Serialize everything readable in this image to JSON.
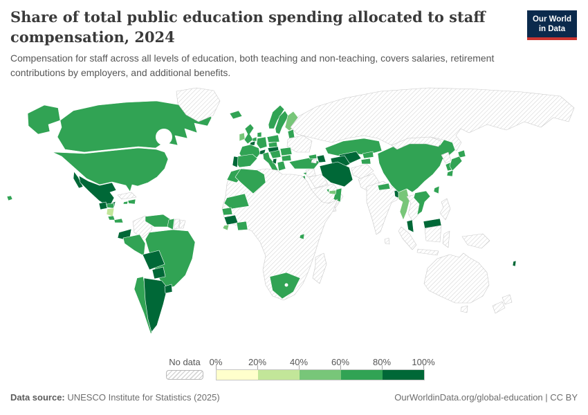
{
  "header": {
    "title": "Share of total public education spending allocated to staff compensation, 2024",
    "subtitle": "Compensation for staff across all levels of education, both teaching and non-teaching, covers salaries, retirement contributions by employers, and additional benefits.",
    "logo": {
      "line1": "Our World",
      "line2": "in Data",
      "bg_color": "#0b2a4c",
      "accent_color": "#cb3530"
    }
  },
  "legend": {
    "no_data_label": "No data",
    "ticks": [
      "0%",
      "20%",
      "40%",
      "60%",
      "80%",
      "100%"
    ]
  },
  "footer": {
    "datasource_label": "Data source:",
    "datasource_value": " UNESCO Institute for Statistics (2025)",
    "credit": "OurWorldinData.org/global-education | CC BY"
  },
  "chart_data": {
    "type": "choropleth",
    "title": "Share of total public education spending allocated to staff compensation",
    "year": 2024,
    "unit": "share of total public education spending (%)",
    "legend_position": "bottom",
    "no_data": {
      "label": "No data",
      "pattern": "diagonal-hatch",
      "hatch_color": "#d2d2d2",
      "border_color": "#c9c9c9"
    },
    "land_border_color": "#ffffff",
    "ocean_color": "#ffffff",
    "legend_bins": [
      {
        "label": "0-20%",
        "color": "#ffffcc"
      },
      {
        "label": "20-40%",
        "color": "#c2e699"
      },
      {
        "label": "40-60%",
        "color": "#78c679"
      },
      {
        "label": "60-80%",
        "color": "#31a354"
      },
      {
        "label": "80-100%",
        "color": "#006837"
      }
    ],
    "regions": [
      {
        "id": "canada",
        "name": "Canada",
        "value": "60-80%"
      },
      {
        "id": "usa",
        "name": "United States",
        "value": "60-80%"
      },
      {
        "id": "greenland",
        "name": "Greenland",
        "value": "no-data"
      },
      {
        "id": "mexico",
        "name": "Mexico",
        "value": "80-100%"
      },
      {
        "id": "guatemala",
        "name": "Guatemala",
        "value": "80-100%"
      },
      {
        "id": "honduras",
        "name": "Honduras",
        "value": "60-80%"
      },
      {
        "id": "nicaragua",
        "name": "Nicaragua",
        "value": "20-40%"
      },
      {
        "id": "costa_rica",
        "name": "Costa Rica",
        "value": "60-80%"
      },
      {
        "id": "panama",
        "name": "Panama",
        "value": "60-80%"
      },
      {
        "id": "cuba",
        "name": "Cuba",
        "value": "no-data"
      },
      {
        "id": "jamaica",
        "name": "Jamaica",
        "value": "60-80%"
      },
      {
        "id": "dominican",
        "name": "Dominican Republic",
        "value": "60-80%"
      },
      {
        "id": "colombia",
        "name": "Colombia",
        "value": "no-data"
      },
      {
        "id": "venezuela",
        "name": "Venezuela",
        "value": "60-80%"
      },
      {
        "id": "guyana",
        "name": "Guyana",
        "value": "60-80%"
      },
      {
        "id": "suriname",
        "name": "Suriname",
        "value": "no-data"
      },
      {
        "id": "guiana_fr",
        "name": "French Guiana",
        "value": "no-data"
      },
      {
        "id": "ecuador",
        "name": "Ecuador",
        "value": "80-100%"
      },
      {
        "id": "peru",
        "name": "Peru",
        "value": "60-80%"
      },
      {
        "id": "brazil",
        "name": "Brazil",
        "value": "60-80%"
      },
      {
        "id": "bolivia",
        "name": "Bolivia",
        "value": "80-100%"
      },
      {
        "id": "paraguay",
        "name": "Paraguay",
        "value": "80-100%"
      },
      {
        "id": "chile",
        "name": "Chile",
        "value": "60-80%"
      },
      {
        "id": "argentina",
        "name": "Argentina",
        "value": "80-100%"
      },
      {
        "id": "uruguay",
        "name": "Uruguay",
        "value": "80-100%"
      },
      {
        "id": "iceland",
        "name": "Iceland",
        "value": "60-80%"
      },
      {
        "id": "norway",
        "name": "Norway",
        "value": "60-80%"
      },
      {
        "id": "sweden",
        "name": "Sweden",
        "value": "60-80%"
      },
      {
        "id": "finland",
        "name": "Finland",
        "value": "40-60%"
      },
      {
        "id": "uk",
        "name": "United Kingdom",
        "value": "60-80%"
      },
      {
        "id": "ireland",
        "name": "Ireland",
        "value": "40-60%"
      },
      {
        "id": "denmark",
        "name": "Denmark",
        "value": "60-80%"
      },
      {
        "id": "netherlands",
        "name": "Netherlands",
        "value": "60-80%"
      },
      {
        "id": "belgium",
        "name": "Belgium",
        "value": "80-100%"
      },
      {
        "id": "germany",
        "name": "Germany",
        "value": "60-80%"
      },
      {
        "id": "france",
        "name": "France",
        "value": "60-80%"
      },
      {
        "id": "switzerland",
        "name": "Switzerland",
        "value": "80-100%"
      },
      {
        "id": "spain",
        "name": "Spain",
        "value": "60-80%"
      },
      {
        "id": "portugal",
        "name": "Portugal",
        "value": "80-100%"
      },
      {
        "id": "italy",
        "name": "Italy",
        "value": "60-80%"
      },
      {
        "id": "czech",
        "name": "Czechia",
        "value": "60-80%"
      },
      {
        "id": "austria",
        "name": "Austria",
        "value": "80-100%"
      },
      {
        "id": "poland",
        "name": "Poland",
        "value": "60-80%"
      },
      {
        "id": "baltics",
        "name": "Baltic states",
        "value": "60-80%"
      },
      {
        "id": "belarus_ukraine",
        "name": "Belarus and Ukraine",
        "value": "no-data"
      },
      {
        "id": "hungary_balkans",
        "name": "Hungary and Western Balkans",
        "value": "60-80%"
      },
      {
        "id": "romania",
        "name": "Romania",
        "value": "60-80%"
      },
      {
        "id": "bulgaria",
        "name": "Bulgaria",
        "value": "60-80%"
      },
      {
        "id": "albania",
        "name": "Albania",
        "value": "80-100%"
      },
      {
        "id": "greece",
        "name": "Greece",
        "value": "60-80%"
      },
      {
        "id": "cyprus",
        "name": "Cyprus",
        "value": "60-80%"
      },
      {
        "id": "russia",
        "name": "Russia",
        "value": "no-data"
      },
      {
        "id": "turkey",
        "name": "Turkey",
        "value": "60-80%"
      },
      {
        "id": "georgia",
        "name": "Georgia",
        "value": "60-80%"
      },
      {
        "id": "armenia",
        "name": "Armenia",
        "value": "no-data"
      },
      {
        "id": "azerbaijan",
        "name": "Azerbaijan",
        "value": "80-100%"
      },
      {
        "id": "syria",
        "name": "Syria",
        "value": "no-data"
      },
      {
        "id": "iraq",
        "name": "Iraq",
        "value": "no-data"
      },
      {
        "id": "israel_jordan",
        "name": "Israel and Jordan",
        "value": "60-80%"
      },
      {
        "id": "saudi_arabia",
        "name": "Saudi Arabia",
        "value": "no-data"
      },
      {
        "id": "yemen",
        "name": "Yemen",
        "value": "no-data"
      },
      {
        "id": "oman",
        "name": "Oman",
        "value": "60-80%"
      },
      {
        "id": "uae",
        "name": "United Arab Emirates",
        "value": "40-60%"
      },
      {
        "id": "qatar",
        "name": "Qatar",
        "value": "60-80%"
      },
      {
        "id": "iran",
        "name": "Iran",
        "value": "80-100%"
      },
      {
        "id": "kazakhstan",
        "name": "Kazakhstan",
        "value": "60-80%"
      },
      {
        "id": "uzbekistan",
        "name": "Uzbekistan",
        "value": "80-100%"
      },
      {
        "id": "turkmenistan",
        "name": "Turkmenistan",
        "value": "80-100%"
      },
      {
        "id": "kyrgyzstan",
        "name": "Kyrgyzstan",
        "value": "60-80%"
      },
      {
        "id": "tajikistan",
        "name": "Tajikistan",
        "value": "60-80%"
      },
      {
        "id": "afghanistan",
        "name": "Afghanistan",
        "value": "no-data"
      },
      {
        "id": "pakistan",
        "name": "Pakistan",
        "value": "no-data"
      },
      {
        "id": "india",
        "name": "India",
        "value": "no-data"
      },
      {
        "id": "nepal",
        "name": "Nepal",
        "value": "60-80%"
      },
      {
        "id": "bangladesh",
        "name": "Bangladesh",
        "value": "80-100%"
      },
      {
        "id": "sri_lanka",
        "name": "Sri Lanka",
        "value": "no-data"
      },
      {
        "id": "china",
        "name": "China",
        "value": "60-80%"
      },
      {
        "id": "mongolia",
        "name": "Mongolia",
        "value": "no-data"
      },
      {
        "id": "north_korea",
        "name": "North Korea",
        "value": "no-data"
      },
      {
        "id": "south_korea",
        "name": "South Korea",
        "value": "60-80%"
      },
      {
        "id": "japan",
        "name": "Japan",
        "value": "60-80%"
      },
      {
        "id": "taiwan",
        "name": "Taiwan",
        "value": "60-80%"
      },
      {
        "id": "myanmar",
        "name": "Myanmar",
        "value": "40-60%"
      },
      {
        "id": "indochina",
        "name": "Thailand, Laos and Cambodia",
        "value": "no-data"
      },
      {
        "id": "vietnam",
        "name": "Vietnam",
        "value": "60-80%"
      },
      {
        "id": "malaysia",
        "name": "Malaysia",
        "value": "80-100%"
      },
      {
        "id": "indonesia",
        "name": "Indonesia",
        "value": "no-data"
      },
      {
        "id": "philippines",
        "name": "Philippines",
        "value": "no-data"
      },
      {
        "id": "new_guinea",
        "name": "Papua New Guinea",
        "value": "no-data"
      },
      {
        "id": "australia",
        "name": "Australia",
        "value": "no-data"
      },
      {
        "id": "new_zealand",
        "name": "New Zealand",
        "value": "no-data"
      },
      {
        "id": "vanuatu",
        "name": "Vanuatu",
        "value": "80-100%"
      },
      {
        "id": "africa_nodata",
        "name": "Africa (countries without data)",
        "value": "no-data"
      },
      {
        "id": "morocco",
        "name": "Morocco",
        "value": "60-80%"
      },
      {
        "id": "algeria",
        "name": "Algeria",
        "value": "60-80%"
      },
      {
        "id": "mauritania",
        "name": "Mauritania",
        "value": "60-80%"
      },
      {
        "id": "senegal",
        "name": "Senegal",
        "value": "60-80%"
      },
      {
        "id": "guinea",
        "name": "Guinea",
        "value": "80-100%"
      },
      {
        "id": "sierra_leone",
        "name": "Sierra Leone",
        "value": "40-60%"
      },
      {
        "id": "cote_divoire",
        "name": "Cote d'Ivoire",
        "value": "60-80%"
      },
      {
        "id": "rwanda_burundi",
        "name": "Rwanda and Burundi",
        "value": "60-80%"
      },
      {
        "id": "south_africa",
        "name": "South Africa",
        "value": "60-80%"
      },
      {
        "id": "madagascar",
        "name": "Madagascar",
        "value": "no-data"
      }
    ]
  }
}
